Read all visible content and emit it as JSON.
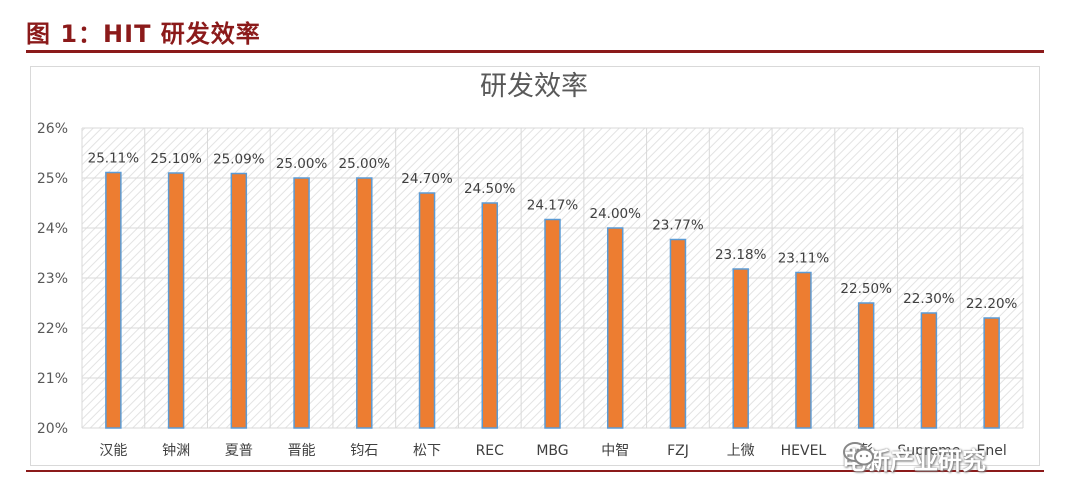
{
  "figure": {
    "caption": "图 1：HIT 研发效率"
  },
  "watermark": {
    "text": "电新产业研究",
    "icon": "wechat-icon"
  },
  "chart_data": {
    "type": "bar",
    "title": "研发效率",
    "xlabel": "",
    "ylabel": "",
    "categories": [
      "汉能",
      "钟渊",
      "夏普",
      "晋能",
      "钧石",
      "松下",
      "REC",
      "MBG",
      "中智",
      "FZJ",
      "上微",
      "HEVEL",
      "彭",
      "Supreme",
      "Enel"
    ],
    "values": [
      25.11,
      25.1,
      25.09,
      25.0,
      25.0,
      24.7,
      24.5,
      24.17,
      24.0,
      23.77,
      23.18,
      23.11,
      22.5,
      22.3,
      22.2
    ],
    "data_labels": [
      "25.11%",
      "25.10%",
      "25.09%",
      "25.00%",
      "25.00%",
      "24.70%",
      "24.50%",
      "24.17%",
      "24.00%",
      "23.77%",
      "23.18%",
      "23.11%",
      "22.50%",
      "22.30%",
      "22.20%"
    ],
    "ylim": [
      20,
      26
    ],
    "yticks": [
      "20%",
      "21%",
      "22%",
      "23%",
      "24%",
      "25%",
      "26%"
    ],
    "grid": true,
    "legend": "none",
    "colors": {
      "bar": "#ed7d31",
      "bar_edge": "#5b9bd5",
      "grid": "#d9d9d9",
      "hatch": "#e0e0e0",
      "caption": "#8b1a1a"
    }
  }
}
